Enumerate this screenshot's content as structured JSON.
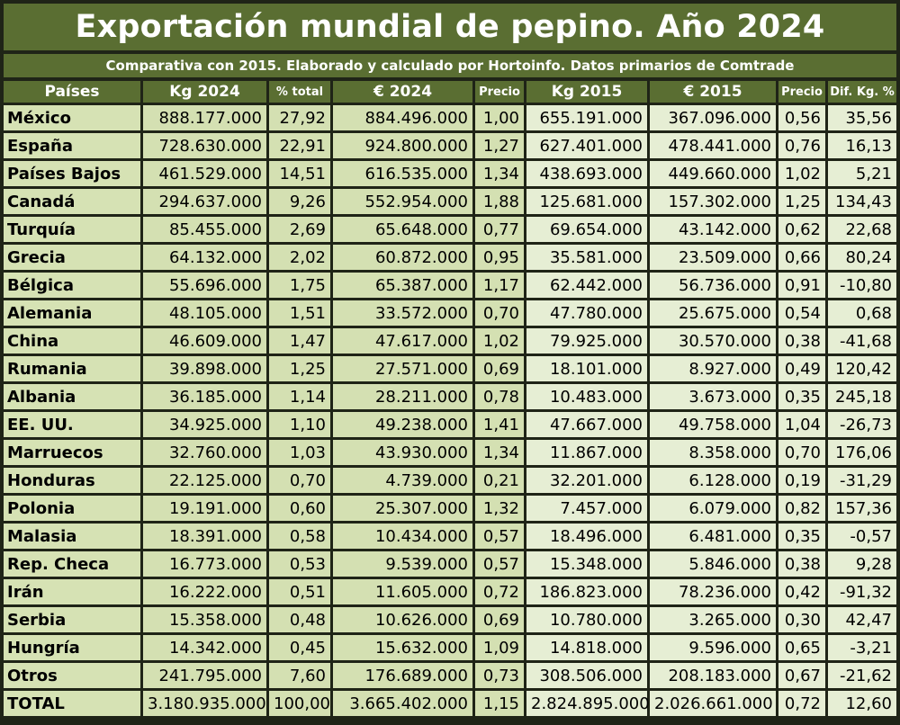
{
  "title": "Exportación mundial de pepino. Año 2024",
  "subtitle": "Comparativa con 2015. Elaborado y calculado por Hortoinfo. Datos primarios de Comtrade",
  "colors": {
    "header_bg": "#5a6e32",
    "cell_2024": "#d4e0b2",
    "cell_2015": "#e6eed4",
    "frame": "#1f2417"
  },
  "headers": [
    "Países",
    "Kg 2024",
    "% total",
    "€ 2024",
    "Precio",
    "Kg 2015",
    "€ 2015",
    "Precio",
    "Dif. Kg. %"
  ],
  "rows": [
    [
      "México",
      "888.177.000",
      "27,92",
      "884.496.000",
      "1,00",
      "655.191.000",
      "367.096.000",
      "0,56",
      "35,56"
    ],
    [
      "España",
      "728.630.000",
      "22,91",
      "924.800.000",
      "1,27",
      "627.401.000",
      "478.441.000",
      "0,76",
      "16,13"
    ],
    [
      "Países Bajos",
      "461.529.000",
      "14,51",
      "616.535.000",
      "1,34",
      "438.693.000",
      "449.660.000",
      "1,02",
      "5,21"
    ],
    [
      "Canadá",
      "294.637.000",
      "9,26",
      "552.954.000",
      "1,88",
      "125.681.000",
      "157.302.000",
      "1,25",
      "134,43"
    ],
    [
      "Turquía",
      "85.455.000",
      "2,69",
      "65.648.000",
      "0,77",
      "69.654.000",
      "43.142.000",
      "0,62",
      "22,68"
    ],
    [
      "Grecia",
      "64.132.000",
      "2,02",
      "60.872.000",
      "0,95",
      "35.581.000",
      "23.509.000",
      "0,66",
      "80,24"
    ],
    [
      "Bélgica",
      "55.696.000",
      "1,75",
      "65.387.000",
      "1,17",
      "62.442.000",
      "56.736.000",
      "0,91",
      "-10,80"
    ],
    [
      "Alemania",
      "48.105.000",
      "1,51",
      "33.572.000",
      "0,70",
      "47.780.000",
      "25.675.000",
      "0,54",
      "0,68"
    ],
    [
      "China",
      "46.609.000",
      "1,47",
      "47.617.000",
      "1,02",
      "79.925.000",
      "30.570.000",
      "0,38",
      "-41,68"
    ],
    [
      "Rumania",
      "39.898.000",
      "1,25",
      "27.571.000",
      "0,69",
      "18.101.000",
      "8.927.000",
      "0,49",
      "120,42"
    ],
    [
      "Albania",
      "36.185.000",
      "1,14",
      "28.211.000",
      "0,78",
      "10.483.000",
      "3.673.000",
      "0,35",
      "245,18"
    ],
    [
      "EE. UU.",
      "34.925.000",
      "1,10",
      "49.238.000",
      "1,41",
      "47.667.000",
      "49.758.000",
      "1,04",
      "-26,73"
    ],
    [
      "Marruecos",
      "32.760.000",
      "1,03",
      "43.930.000",
      "1,34",
      "11.867.000",
      "8.358.000",
      "0,70",
      "176,06"
    ],
    [
      "Honduras",
      "22.125.000",
      "0,70",
      "4.739.000",
      "0,21",
      "32.201.000",
      "6.128.000",
      "0,19",
      "-31,29"
    ],
    [
      "Polonia",
      "19.191.000",
      "0,60",
      "25.307.000",
      "1,32",
      "7.457.000",
      "6.079.000",
      "0,82",
      "157,36"
    ],
    [
      "Malasia",
      "18.391.000",
      "0,58",
      "10.434.000",
      "0,57",
      "18.496.000",
      "6.481.000",
      "0,35",
      "-0,57"
    ],
    [
      "Rep. Checa",
      "16.773.000",
      "0,53",
      "9.539.000",
      "0,57",
      "15.348.000",
      "5.846.000",
      "0,38",
      "9,28"
    ],
    [
      "Irán",
      "16.222.000",
      "0,51",
      "11.605.000",
      "0,72",
      "186.823.000",
      "78.236.000",
      "0,42",
      "-91,32"
    ],
    [
      "Serbia",
      "15.358.000",
      "0,48",
      "10.626.000",
      "0,69",
      "10.780.000",
      "3.265.000",
      "0,30",
      "42,47"
    ],
    [
      "Hungría",
      "14.342.000",
      "0,45",
      "15.632.000",
      "1,09",
      "14.818.000",
      "9.596.000",
      "0,65",
      "-3,21"
    ],
    [
      "Otros",
      "241.795.000",
      "7,60",
      "176.689.000",
      "0,73",
      "308.506.000",
      "208.183.000",
      "0,67",
      "-21,62"
    ],
    [
      "TOTAL",
      "3.180.935.000",
      "100,00",
      "3.665.402.000",
      "1,15",
      "2.824.895.000",
      "2.026.661.000",
      "0,72",
      "12,60"
    ]
  ]
}
